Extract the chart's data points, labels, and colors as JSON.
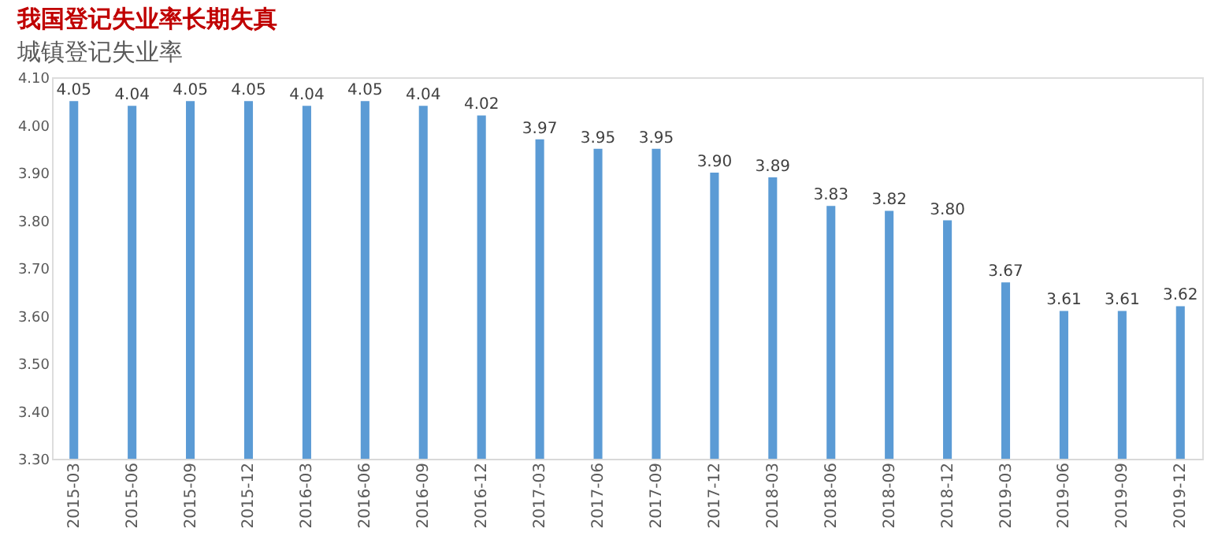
{
  "chart_data": {
    "type": "bar",
    "title": "我国登记失业率长期失真",
    "subtitle": "城镇登记失业率",
    "categories": [
      "2015-03",
      "2015-06",
      "2015-09",
      "2015-12",
      "2016-03",
      "2016-06",
      "2016-09",
      "2016-12",
      "2017-03",
      "2017-06",
      "2017-09",
      "2017-12",
      "2018-03",
      "2018-06",
      "2018-09",
      "2018-12",
      "2019-03",
      "2019-06",
      "2019-09",
      "2019-12"
    ],
    "values": [
      4.05,
      4.04,
      4.05,
      4.05,
      4.04,
      4.05,
      4.04,
      4.02,
      3.97,
      3.95,
      3.95,
      3.9,
      3.89,
      3.83,
      3.82,
      3.8,
      3.67,
      3.61,
      3.61,
      3.62
    ],
    "value_labels": [
      "4.05",
      "4.04",
      "4.05",
      "4.05",
      "4.04",
      "4.05",
      "4.04",
      "4.02",
      "3.97",
      "3.95",
      "3.95",
      "3.90",
      "3.89",
      "3.83",
      "3.82",
      "3.80",
      "3.67",
      "3.61",
      "3.61",
      "3.62"
    ],
    "color": "#5b9bd5",
    "ylim": [
      3.3,
      4.1
    ],
    "yticks": [
      {
        "value": 3.3,
        "label": "3.30"
      },
      {
        "value": 3.4,
        "label": "3.40"
      },
      {
        "value": 3.5,
        "label": "3.50"
      },
      {
        "value": 3.6,
        "label": "3.60"
      },
      {
        "value": 3.7,
        "label": "3.70"
      },
      {
        "value": 3.8,
        "label": "3.80"
      },
      {
        "value": 3.9,
        "label": "3.90"
      },
      {
        "value": 4.0,
        "label": "4.00"
      },
      {
        "value": 4.1,
        "label": "4.10"
      }
    ],
    "grid": false
  }
}
